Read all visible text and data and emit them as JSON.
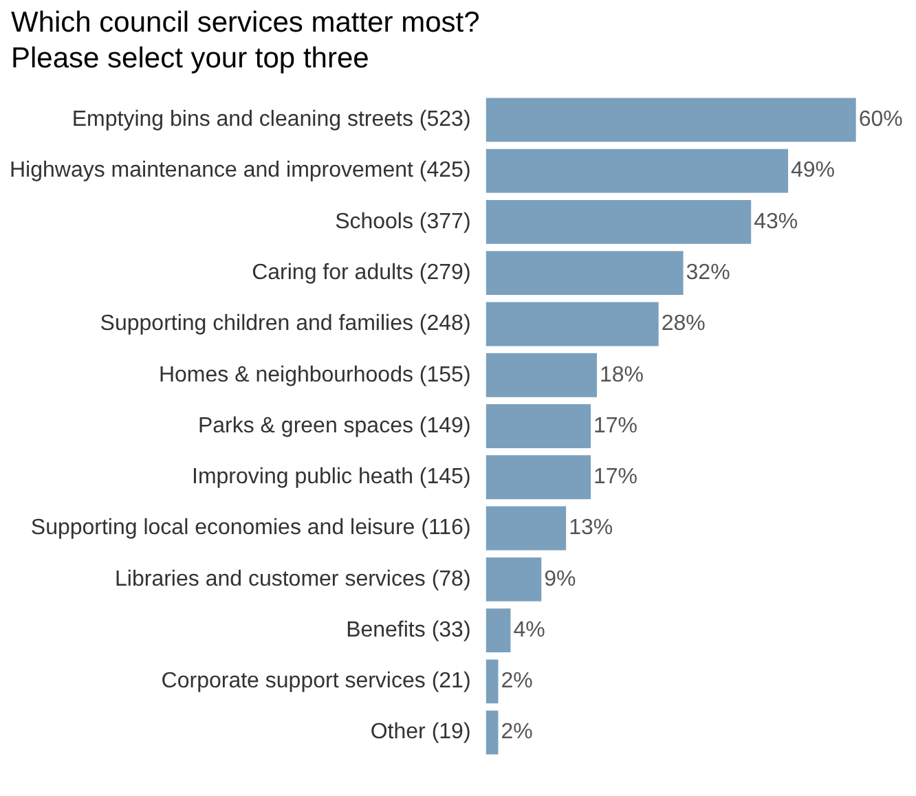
{
  "chart_data": {
    "type": "bar",
    "orientation": "horizontal",
    "title": "Which council services matter most?",
    "subtitle": "Please select your top three",
    "categories": [
      "Emptying bins and cleaning streets (523)",
      "Highways maintenance and improvement (425)",
      "Schools (377)",
      "Caring for adults (279)",
      "Supporting children and families (248)",
      "Homes & neighbourhoods (155)",
      "Parks & green spaces (149)",
      "Improving public heath (145)",
      "Supporting local economies and leisure (116)",
      "Libraries and customer services (78)",
      "Benefits (33)",
      "Corporate support services (21)",
      "Other (19)"
    ],
    "values": [
      60,
      49,
      43,
      32,
      28,
      18,
      17,
      17,
      13,
      9,
      4,
      2,
      2
    ],
    "value_labels": [
      "60%",
      "49%",
      "43%",
      "32%",
      "28%",
      "18%",
      "17%",
      "17%",
      "13%",
      "9%",
      "4%",
      "2%",
      "2%"
    ],
    "color": "#7aa0bd",
    "legend": false,
    "tick_labels": "y"
  }
}
